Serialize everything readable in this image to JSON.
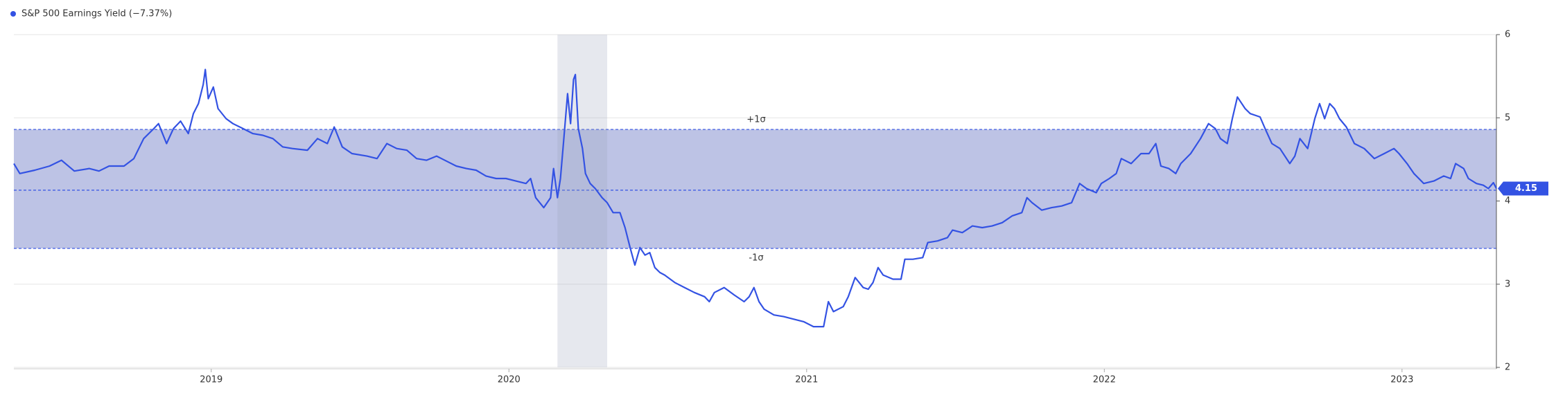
{
  "chart_data": {
    "type": "line",
    "series": [
      {
        "name": "S&P 500 Earnings Yield (−7.37%)",
        "color": "#3352e3",
        "values": [
          4.45,
          4.33,
          4.37,
          4.42,
          4.49,
          4.36,
          4.39,
          4.36,
          4.42,
          4.42,
          4.51,
          4.75,
          4.87,
          4.93,
          4.69,
          4.87,
          4.96,
          4.81,
          5.05,
          5.17,
          5.4,
          5.58,
          5.23,
          5.37,
          5.11,
          4.99,
          4.93,
          4.87,
          4.81,
          4.79,
          4.75,
          4.65,
          4.63,
          4.61,
          4.75,
          4.69,
          4.89,
          4.65,
          4.57,
          4.54,
          4.51,
          4.69,
          4.63,
          4.61,
          4.51,
          4.49,
          4.54,
          4.48,
          4.42,
          4.39,
          4.37,
          4.3,
          4.27,
          4.27,
          4.24,
          4.21,
          4.27,
          4.04,
          3.92,
          4.04,
          4.39,
          4.04,
          4.27,
          4.69,
          5.29,
          4.93,
          5.46,
          5.52,
          4.87,
          4.63,
          4.33,
          4.21,
          4.15,
          4.04,
          3.98,
          3.86,
          3.86,
          3.68,
          3.44,
          3.23,
          3.44,
          3.35,
          3.38,
          3.2,
          3.14,
          3.11,
          3.02,
          2.96,
          2.9,
          2.85,
          2.79,
          2.9,
          2.96,
          2.87,
          2.79,
          2.85,
          2.96,
          2.79,
          2.7,
          2.63,
          2.61,
          2.58,
          2.55,
          2.49,
          2.49,
          2.79,
          2.67,
          2.73,
          2.85,
          3.08,
          2.96,
          2.94,
          3.02,
          3.2,
          3.11,
          3.06,
          3.06,
          3.3,
          3.3,
          3.32,
          3.5,
          3.52,
          3.56,
          3.65,
          3.62,
          3.7,
          3.68,
          3.7,
          3.74,
          3.82,
          3.86,
          4.04,
          3.98,
          3.89,
          3.92,
          3.94,
          3.98,
          4.21,
          4.15,
          4.1,
          4.21,
          4.27,
          4.33,
          4.51,
          4.45,
          4.57,
          4.57,
          4.69,
          4.42,
          4.39,
          4.33,
          4.45,
          4.57,
          4.75,
          4.93,
          4.87,
          4.75,
          4.69,
          4.99,
          5.25,
          5.11,
          5.05,
          5.01,
          4.87,
          4.69,
          4.63,
          4.45,
          4.54,
          4.75,
          4.63,
          4.99,
          5.17,
          4.99,
          5.17,
          5.11,
          4.99,
          4.89,
          4.69,
          4.63,
          4.51,
          4.57,
          4.63,
          4.57,
          4.45,
          4.33,
          4.21,
          4.24,
          4.3,
          4.27,
          4.45,
          4.39,
          4.27,
          4.21,
          4.19,
          4.15,
          4.22,
          4.15
        ]
      }
    ],
    "x": [
      2018.337,
      2018.357,
      2018.407,
      2018.457,
      2018.497,
      2018.54,
      2018.59,
      2018.623,
      2018.657,
      2018.707,
      2018.74,
      2018.773,
      2018.807,
      2018.823,
      2018.85,
      2018.873,
      2018.897,
      2018.923,
      2018.94,
      2018.957,
      2018.973,
      2018.98,
      2018.99,
      2019.007,
      2019.023,
      2019.05,
      2019.073,
      2019.107,
      2019.14,
      2019.173,
      2019.207,
      2019.24,
      2019.273,
      2019.323,
      2019.357,
      2019.39,
      2019.413,
      2019.44,
      2019.473,
      2019.523,
      2019.557,
      2019.59,
      2019.623,
      2019.657,
      2019.69,
      2019.723,
      2019.757,
      2019.79,
      2019.823,
      2019.857,
      2019.89,
      2019.923,
      2019.957,
      2019.99,
      2020.023,
      2020.057,
      2020.073,
      2020.09,
      2020.117,
      2020.14,
      2020.15,
      2020.163,
      2020.173,
      2020.183,
      2020.197,
      2020.207,
      2020.217,
      2020.223,
      2020.233,
      2020.247,
      2020.257,
      2020.273,
      2020.29,
      2020.313,
      2020.33,
      2020.35,
      2020.373,
      2020.39,
      2020.407,
      2020.423,
      2020.44,
      2020.457,
      2020.473,
      2020.49,
      2020.507,
      2020.523,
      2020.557,
      2020.59,
      2020.623,
      2020.657,
      2020.673,
      2020.69,
      2020.723,
      2020.757,
      2020.79,
      2020.807,
      2020.823,
      2020.84,
      2020.857,
      2020.89,
      2020.923,
      2020.957,
      2020.99,
      2021.023,
      2021.057,
      2021.073,
      2021.09,
      2021.123,
      2021.14,
      2021.163,
      2021.19,
      2021.207,
      2021.223,
      2021.24,
      2021.257,
      2021.29,
      2021.317,
      2021.33,
      2021.357,
      2021.39,
      2021.407,
      2021.44,
      2021.473,
      2021.49,
      2021.523,
      2021.557,
      2021.59,
      2021.623,
      2021.657,
      2021.69,
      2021.723,
      2021.74,
      2021.757,
      2021.79,
      2021.823,
      2021.857,
      2021.89,
      2021.917,
      2021.94,
      2021.973,
      2021.99,
      2022.017,
      2022.04,
      2022.057,
      2022.09,
      2022.123,
      2022.15,
      2022.173,
      2022.19,
      2022.217,
      2022.24,
      2022.257,
      2022.29,
      2022.323,
      2022.35,
      2022.373,
      2022.39,
      2022.413,
      2022.43,
      2022.447,
      2022.473,
      2022.49,
      2022.523,
      2022.54,
      2022.563,
      2022.59,
      2022.623,
      2022.64,
      2022.657,
      2022.683,
      2022.707,
      2022.723,
      2022.74,
      2022.757,
      2022.773,
      2022.79,
      2022.813,
      2022.84,
      2022.873,
      2022.907,
      2022.94,
      2022.973,
      2022.99,
      2023.017,
      2023.04,
      2023.073,
      2023.107,
      2023.14,
      2023.163,
      2023.18,
      2023.207,
      2023.223,
      2023.25,
      2023.273,
      2023.29,
      2023.307,
      2023.317
    ],
    "xlim": [
      2018.337,
      2023.317
    ],
    "xticks": [
      2019,
      2020,
      2021,
      2022,
      2023
    ],
    "ylim": [
      2,
      6
    ],
    "yticks": [
      2,
      3,
      4,
      5,
      6
    ],
    "grid": true,
    "sigma_band": {
      "mean": 4.13,
      "upper": 4.86,
      "lower": 3.43,
      "upper_label": "+1σ",
      "lower_label": "-1σ",
      "color": "#b9c0e4"
    },
    "shaded_range": [
      2020.163,
      2020.33
    ]
  }
}
